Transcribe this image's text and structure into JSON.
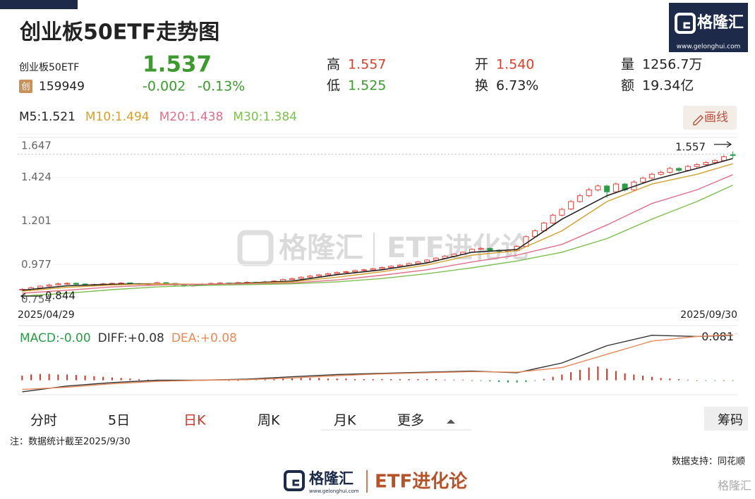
{
  "header": {
    "title": "创业板50ETF走势图",
    "name": "创业板50ETF",
    "badge": "创",
    "code": "159949",
    "price": "1.537",
    "change": "-0.002",
    "change_pct": "-0.13%",
    "stats": [
      {
        "label": "高",
        "value": "1.557",
        "color": "#d9412f"
      },
      {
        "label": "低",
        "value": "1.525",
        "color": "#3d9a2e"
      },
      {
        "label": "开",
        "value": "1.540",
        "color": "#d9412f"
      },
      {
        "label": "换",
        "value": "6.73%",
        "color": "#222222"
      },
      {
        "label": "量",
        "value": "1256.7万",
        "color": "#222222"
      },
      {
        "label": "额",
        "value": "19.34亿",
        "color": "#222222"
      }
    ]
  },
  "logo": {
    "name": "格隆汇",
    "url": "www.gelonghui.com"
  },
  "chart_data": [
    {
      "type": "candlestick",
      "draw_button": "画线",
      "categories": [
        "2025/04/29",
        null,
        null,
        null,
        null,
        null,
        null,
        null,
        null,
        null,
        null,
        null,
        null,
        null,
        null,
        null,
        null,
        null,
        null,
        null,
        null,
        null,
        null,
        null,
        null,
        null,
        null,
        null,
        null,
        null,
        null,
        null,
        null,
        null,
        null,
        null,
        null,
        null,
        null,
        null,
        null,
        null,
        null,
        null,
        null,
        null,
        null,
        null,
        null,
        null,
        null,
        null,
        null,
        null,
        null,
        null,
        null,
        null,
        null,
        null,
        null,
        null,
        null,
        null,
        null,
        null,
        null,
        null,
        null,
        null,
        null,
        null,
        null,
        null,
        null,
        null,
        null,
        null,
        null,
        "2025/09/30"
      ],
      "ohlc": [
        [
          0.846,
          0.856,
          0.844,
          0.85
        ],
        [
          0.85,
          0.864,
          0.846,
          0.858
        ],
        [
          0.857,
          0.871,
          0.853,
          0.866
        ],
        [
          0.866,
          0.878,
          0.861,
          0.872
        ],
        [
          0.873,
          0.884,
          0.868,
          0.878
        ],
        [
          0.879,
          0.886,
          0.873,
          0.88
        ],
        [
          0.881,
          0.884,
          0.87,
          0.876
        ],
        [
          0.877,
          0.88,
          0.866,
          0.872
        ],
        [
          0.871,
          0.879,
          0.867,
          0.874
        ],
        [
          0.874,
          0.883,
          0.87,
          0.878
        ],
        [
          0.877,
          0.885,
          0.873,
          0.88
        ],
        [
          0.88,
          0.887,
          0.876,
          0.882
        ],
        [
          0.883,
          0.885,
          0.874,
          0.879
        ],
        [
          0.879,
          0.882,
          0.871,
          0.876
        ],
        [
          0.876,
          0.883,
          0.872,
          0.878
        ],
        [
          0.878,
          0.889,
          0.874,
          0.884
        ],
        [
          0.884,
          0.887,
          0.876,
          0.88
        ],
        [
          0.88,
          0.882,
          0.867,
          0.872
        ],
        [
          0.871,
          0.874,
          0.862,
          0.868
        ],
        [
          0.867,
          0.879,
          0.864,
          0.874
        ],
        [
          0.874,
          0.881,
          0.87,
          0.876
        ],
        [
          0.876,
          0.885,
          0.872,
          0.88
        ],
        [
          0.88,
          0.887,
          0.876,
          0.882
        ],
        [
          0.882,
          0.884,
          0.873,
          0.878
        ],
        [
          0.878,
          0.889,
          0.874,
          0.884
        ],
        [
          0.884,
          0.891,
          0.88,
          0.886
        ],
        [
          0.886,
          0.889,
          0.877,
          0.882
        ],
        [
          0.882,
          0.893,
          0.878,
          0.888
        ],
        [
          0.888,
          0.897,
          0.884,
          0.892
        ],
        [
          0.892,
          0.905,
          0.888,
          0.9
        ],
        [
          0.9,
          0.91,
          0.896,
          0.905
        ],
        [
          0.905,
          0.917,
          0.901,
          0.912
        ],
        [
          0.912,
          0.923,
          0.908,
          0.918
        ],
        [
          0.918,
          0.929,
          0.914,
          0.924
        ],
        [
          0.924,
          0.935,
          0.92,
          0.93
        ],
        [
          0.93,
          0.941,
          0.926,
          0.936
        ],
        [
          0.937,
          0.945,
          0.932,
          0.94
        ],
        [
          0.94,
          0.951,
          0.936,
          0.946
        ],
        [
          0.947,
          0.955,
          0.942,
          0.95
        ],
        [
          0.95,
          0.961,
          0.946,
          0.956
        ],
        [
          0.956,
          0.967,
          0.952,
          0.962
        ],
        [
          0.962,
          0.973,
          0.958,
          0.968
        ],
        [
          0.968,
          0.979,
          0.964,
          0.974
        ],
        [
          0.974,
          0.987,
          0.97,
          0.982
        ],
        [
          0.982,
          0.995,
          0.978,
          0.99
        ],
        [
          0.99,
          1.005,
          0.986,
          1.0
        ],
        [
          1.0,
          1.015,
          0.996,
          1.01
        ],
        [
          1.01,
          1.025,
          1.006,
          1.02
        ],
        [
          1.02,
          1.035,
          1.016,
          1.03
        ],
        [
          1.03,
          1.045,
          1.026,
          1.04
        ],
        [
          1.04,
          1.06,
          1.036,
          1.055
        ],
        [
          1.055,
          1.066,
          1.05,
          1.06
        ],
        [
          1.06,
          1.064,
          1.045,
          1.05
        ],
        [
          1.05,
          1.055,
          1.04,
          1.045
        ],
        [
          1.045,
          1.056,
          1.04,
          1.05
        ],
        [
          1.05,
          1.076,
          1.046,
          1.07
        ],
        [
          1.07,
          1.126,
          1.066,
          1.12
        ],
        [
          1.12,
          1.158,
          1.114,
          1.15
        ],
        [
          1.15,
          1.196,
          1.146,
          1.19
        ],
        [
          1.19,
          1.238,
          1.184,
          1.23
        ],
        [
          1.23,
          1.268,
          1.224,
          1.26
        ],
        [
          1.262,
          1.308,
          1.256,
          1.3
        ],
        [
          1.3,
          1.34,
          1.294,
          1.33
        ],
        [
          1.33,
          1.37,
          1.324,
          1.36
        ],
        [
          1.36,
          1.388,
          1.352,
          1.38
        ],
        [
          1.38,
          1.386,
          1.32,
          1.35
        ],
        [
          1.35,
          1.398,
          1.344,
          1.39
        ],
        [
          1.39,
          1.395,
          1.352,
          1.36
        ],
        [
          1.36,
          1.408,
          1.354,
          1.4
        ],
        [
          1.4,
          1.428,
          1.394,
          1.42
        ],
        [
          1.42,
          1.448,
          1.414,
          1.44
        ],
        [
          1.44,
          1.458,
          1.434,
          1.45
        ],
        [
          1.45,
          1.478,
          1.444,
          1.47
        ],
        [
          1.47,
          1.476,
          1.452,
          1.46
        ],
        [
          1.46,
          1.488,
          1.454,
          1.48
        ],
        [
          1.48,
          1.497,
          1.474,
          1.49
        ],
        [
          1.49,
          1.507,
          1.484,
          1.5
        ],
        [
          1.5,
          1.517,
          1.494,
          1.51
        ],
        [
          1.51,
          1.538,
          1.504,
          1.53
        ],
        [
          1.54,
          1.557,
          1.525,
          1.537
        ]
      ],
      "up_color": "#e0453e",
      "down_color": "#2e9b48",
      "ylim": [
        0.754,
        1.647
      ],
      "yticks": [
        1.647,
        1.424,
        1.201,
        0.977,
        0.754
      ],
      "high_marker": 1.557,
      "low_marker": 0.844,
      "series": [
        {
          "name": "M5:1.521",
          "color": "#222222",
          "x": [
            0,
            5,
            10,
            15,
            20,
            25,
            30,
            35,
            40,
            45,
            50,
            55,
            60,
            65,
            70,
            75,
            79
          ],
          "values": [
            0.845,
            0.868,
            0.876,
            0.878,
            0.874,
            0.882,
            0.892,
            0.925,
            0.95,
            0.985,
            1.04,
            1.054,
            1.21,
            1.33,
            1.41,
            1.47,
            1.521
          ]
        },
        {
          "name": "M10:1.494",
          "color": "#d4a030",
          "x": [
            0,
            5,
            10,
            15,
            20,
            25,
            30,
            35,
            40,
            45,
            50,
            55,
            60,
            65,
            70,
            75,
            79
          ],
          "values": [
            0.84,
            0.86,
            0.872,
            0.878,
            0.876,
            0.88,
            0.888,
            0.912,
            0.94,
            0.975,
            1.025,
            1.048,
            1.15,
            1.3,
            1.39,
            1.44,
            1.494
          ]
        },
        {
          "name": "M20:1.438",
          "color": "#e0708a",
          "x": [
            0,
            5,
            10,
            15,
            20,
            25,
            30,
            35,
            40,
            45,
            50,
            55,
            60,
            65,
            70,
            75,
            79
          ],
          "values": [
            0.83,
            0.845,
            0.862,
            0.872,
            0.876,
            0.878,
            0.882,
            0.898,
            0.922,
            0.95,
            0.99,
            1.025,
            1.08,
            1.18,
            1.29,
            1.36,
            1.438
          ]
        },
        {
          "name": "M30:1.384",
          "color": "#7cc050",
          "x": [
            0,
            5,
            10,
            15,
            20,
            25,
            30,
            35,
            40,
            45,
            50,
            55,
            60,
            65,
            70,
            75,
            79
          ],
          "values": [
            0.815,
            0.83,
            0.848,
            0.862,
            0.87,
            0.874,
            0.878,
            0.888,
            0.905,
            0.93,
            0.96,
            0.995,
            1.04,
            1.11,
            1.21,
            1.3,
            1.384
          ]
        }
      ]
    },
    {
      "type": "macd",
      "ylim": [
        -0.025,
        0.085
      ],
      "yticks": [
        0.081
      ],
      "series": [
        {
          "name": "MACD:-0.00",
          "type": "bar",
          "color": "#2e9b48",
          "up_color": "#c0392b",
          "down_color": "#2e9b48",
          "values": [
            0.008,
            0.01,
            0.011,
            0.011,
            0.01,
            0.01,
            0.009,
            0.008,
            0.007,
            0.006,
            0.005,
            0.004,
            0.003,
            0.002,
            0.001,
            -0.001,
            -0.002,
            -0.002,
            -0.001,
            0.0,
            0.001,
            0.001,
            0.001,
            0.0,
            0.0,
            0.001,
            0.002,
            0.003,
            0.003,
            0.004,
            0.004,
            0.004,
            0.004,
            0.004,
            0.003,
            0.003,
            0.003,
            0.002,
            0.002,
            0.002,
            0.002,
            0.002,
            0.002,
            0.002,
            0.002,
            0.002,
            0.002,
            0.001,
            0.001,
            0.001,
            0.0,
            -0.001,
            -0.002,
            -0.003,
            -0.004,
            -0.004,
            -0.003,
            -0.001,
            0.002,
            0.006,
            0.01,
            0.014,
            0.018,
            0.022,
            0.024,
            0.02,
            0.016,
            0.012,
            0.01,
            0.008,
            0.006,
            0.004,
            0.003,
            0.002,
            0.001,
            0.0,
            -0.001,
            -0.001,
            0.0,
            -0.001
          ]
        },
        {
          "name": "DIFF:+0.08",
          "type": "line",
          "color": "#333333",
          "x": [
            0,
            5,
            10,
            15,
            20,
            25,
            30,
            35,
            40,
            45,
            50,
            55,
            60,
            65,
            70,
            75,
            79
          ],
          "values": [
            -0.02,
            -0.01,
            -0.004,
            0.0,
            0.0,
            0.002,
            0.006,
            0.01,
            0.012,
            0.014,
            0.016,
            0.013,
            0.03,
            0.06,
            0.078,
            0.076,
            0.078
          ]
        },
        {
          "name": "DEA:+0.08",
          "type": "line",
          "color": "#e88a5a",
          "x": [
            0,
            5,
            10,
            15,
            20,
            25,
            30,
            35,
            40,
            45,
            50,
            55,
            60,
            65,
            70,
            75,
            79
          ],
          "values": [
            -0.016,
            -0.012,
            -0.006,
            -0.002,
            0.0,
            0.001,
            0.004,
            0.008,
            0.011,
            0.013,
            0.015,
            0.014,
            0.022,
            0.045,
            0.068,
            0.076,
            0.079
          ]
        }
      ]
    }
  ],
  "tabs": [
    "分时",
    "5日",
    "日K",
    "周K",
    "月K",
    "更多"
  ],
  "active_tab": 2,
  "active_color": "#c8372d",
  "chips_button": "筹码",
  "note": "注：数据统计截至2025/9/30",
  "source": "数据支持：同花顺",
  "footer": {
    "brand": "格隆汇",
    "url": "www.gelonghui.com",
    "column": "ETF进化论"
  }
}
